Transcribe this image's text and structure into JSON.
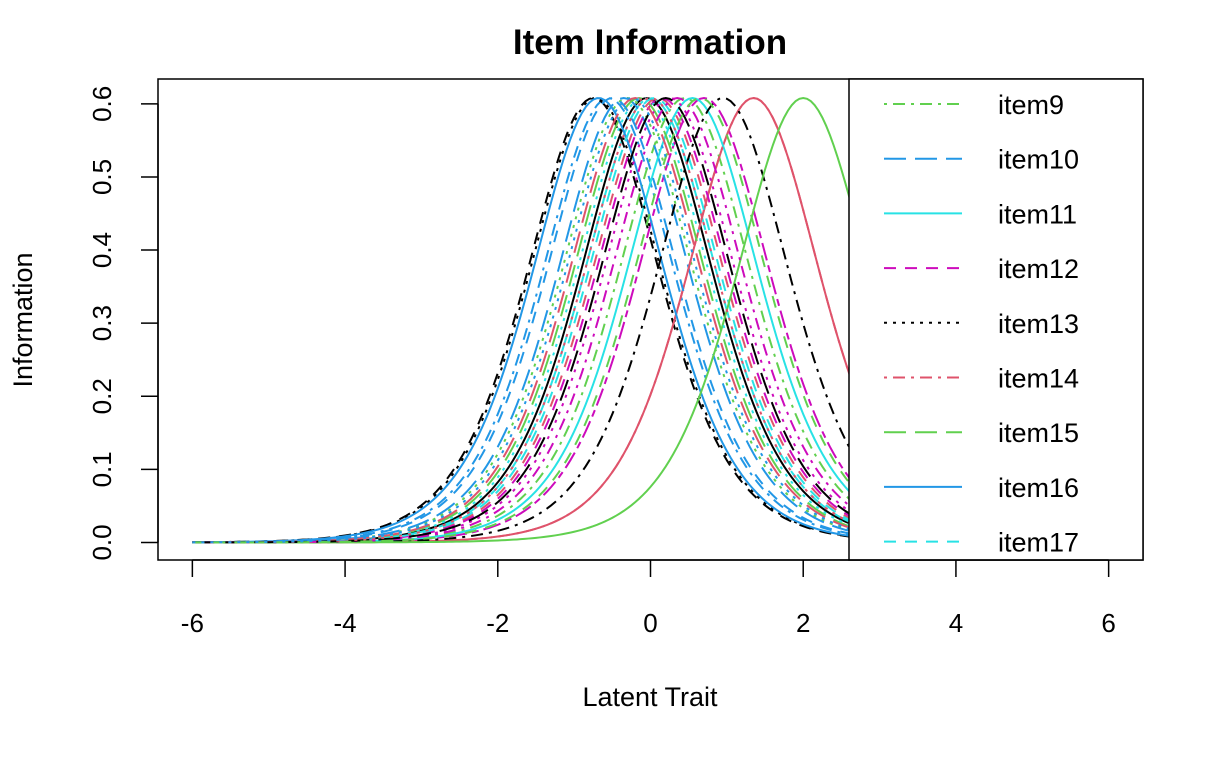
{
  "chart_data": {
    "type": "line",
    "title": "Item Information",
    "xlabel": "Latent Trait",
    "ylabel": "Information",
    "xlim": [
      -6.45,
      6.45
    ],
    "ylim": [
      -0.024,
      0.634
    ],
    "x_ticks": [
      "-6",
      "-4",
      "-2",
      "0",
      "2",
      "4",
      "6"
    ],
    "y_ticks": [
      "0.0",
      "0.1",
      "0.2",
      "0.3",
      "0.4",
      "0.5",
      "0.6"
    ],
    "grid": false,
    "legend_position": "top-right",
    "x_range": [
      -6,
      6
    ],
    "series": [
      {
        "name": "",
        "color": "#000000",
        "dash": "solid",
        "b": -0.05
      },
      {
        "name": "",
        "color": "#DF536B",
        "dash": "dashed",
        "b": 0.1
      },
      {
        "name": "",
        "color": "#61D04F",
        "dash": "dotted",
        "b": -0.3
      },
      {
        "name": "",
        "color": "#2297E6",
        "dash": "dotdash",
        "b": -0.55
      },
      {
        "name": "",
        "color": "#28E2E5",
        "dash": "longdash",
        "b": 0.0
      },
      {
        "name": "",
        "color": "#CD0BBC",
        "dash": "twodash",
        "b": 0.7
      },
      {
        "name": "",
        "color": "#000000",
        "dash": "dashed",
        "b": -0.75
      },
      {
        "name": "",
        "color": "#DF536B",
        "dash": "solid",
        "b": 1.35
      },
      {
        "name": "item9",
        "color": "#61D04F",
        "dash": "dotdash",
        "b": 0.45
      },
      {
        "name": "item10",
        "color": "#2297E6",
        "dash": "longdash",
        "b": -0.35
      },
      {
        "name": "item11",
        "color": "#28E2E5",
        "dash": "solid",
        "b": 0.55
      },
      {
        "name": "item12",
        "color": "#CD0BBC",
        "dash": "dashed",
        "b": 0.15
      },
      {
        "name": "item13",
        "color": "#000000",
        "dash": "dotted",
        "b": -0.72
      },
      {
        "name": "item14",
        "color": "#DF536B",
        "dash": "dotdash",
        "b": 1.35
      },
      {
        "name": "item15",
        "color": "#61D04F",
        "dash": "longdash",
        "b": -0.15
      },
      {
        "name": "item16",
        "color": "#2297E6",
        "dash": "solid",
        "b": -0.68
      },
      {
        "name": "item17",
        "color": "#28E2E5",
        "dash": "dashed",
        "b": 0.05
      },
      {
        "name": "",
        "color": "#CD0BBC",
        "dash": "dotted",
        "b": 0.25
      },
      {
        "name": "",
        "color": "#000000",
        "dash": "dotdash",
        "b": 0.95
      },
      {
        "name": "",
        "color": "#DF536B",
        "dash": "longdash",
        "b": -0.2
      },
      {
        "name": "",
        "color": "#61D04F",
        "dash": "solid",
        "b": 2.0
      },
      {
        "name": "",
        "color": "#2297E6",
        "dash": "dashed",
        "b": -0.5
      },
      {
        "name": "",
        "color": "#28E2E5",
        "dash": "dotted",
        "b": -0.1
      },
      {
        "name": "",
        "color": "#CD0BBC",
        "dash": "dotdash",
        "b": 0.35
      },
      {
        "name": "",
        "color": "#000000",
        "dash": "longdash",
        "b": 0.2
      },
      {
        "name": "",
        "color": "#DF536B",
        "dash": "dotted",
        "b": 0.0
      },
      {
        "name": "",
        "color": "#61D04F",
        "dash": "dashed",
        "b": 0.65
      },
      {
        "name": "",
        "color": "#2297E6",
        "dash": "dotted",
        "b": -0.25
      }
    ],
    "legend": [
      {
        "label": "item9",
        "color": "#61D04F",
        "dash": "dotdash"
      },
      {
        "label": "item10",
        "color": "#2297E6",
        "dash": "longdash"
      },
      {
        "label": "item11",
        "color": "#28E2E5",
        "dash": "solid"
      },
      {
        "label": "item12",
        "color": "#CD0BBC",
        "dash": "dashed"
      },
      {
        "label": "item13",
        "color": "#000000",
        "dash": "dotted"
      },
      {
        "label": "item14",
        "color": "#DF536B",
        "dash": "dotdash"
      },
      {
        "label": "item15",
        "color": "#61D04F",
        "dash": "longdash"
      },
      {
        "label": "item16",
        "color": "#2297E6",
        "dash": "solid"
      },
      {
        "label": "item17",
        "color": "#28E2E5",
        "dash": "dashed"
      }
    ]
  }
}
